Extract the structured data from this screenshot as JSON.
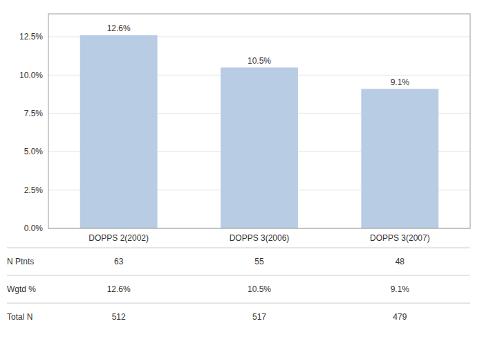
{
  "chart_data": {
    "type": "bar",
    "categories": [
      "DOPPS 2(2002)",
      "DOPPS 3(2006)",
      "DOPPS 3(2007)"
    ],
    "values": [
      12.6,
      10.5,
      9.1
    ],
    "value_labels": [
      "12.6%",
      "10.5%",
      "9.1%"
    ],
    "data_labels": true,
    "color": "#b8cce4",
    "ylim": [
      0,
      14.0
    ],
    "yticks": [
      {
        "value": 0,
        "label": "0.0%"
      },
      {
        "value": 2.5,
        "label": "2.5%"
      },
      {
        "value": 5.0,
        "label": "5.0%"
      },
      {
        "value": 7.5,
        "label": "7.5%"
      },
      {
        "value": 10.0,
        "label": "10.0%"
      },
      {
        "value": 12.5,
        "label": "12.5%"
      }
    ],
    "grid": true,
    "table": {
      "row_labels": [
        "N Ptnts",
        "Wgtd %",
        "Total N"
      ],
      "rows": [
        [
          "63",
          "55",
          "48"
        ],
        [
          "12.6%",
          "10.5%",
          "9.1%"
        ],
        [
          "512",
          "517",
          "479"
        ]
      ]
    }
  }
}
